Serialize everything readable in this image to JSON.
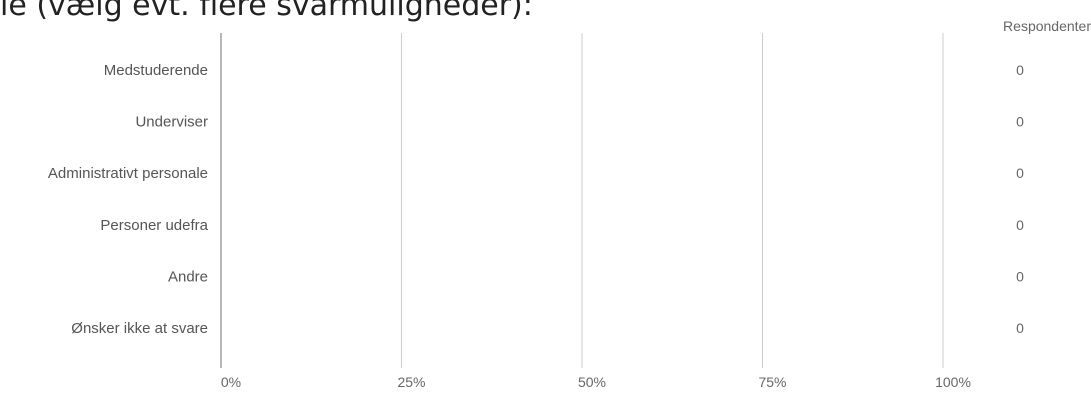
{
  "title": "le (vælg evt. flere svarmuligheder):",
  "chart_data": {
    "type": "bar",
    "orientation": "horizontal",
    "categories": [
      "Medstuderende",
      "Underviser",
      "Administrativt personale",
      "Personer udefra",
      "Andre",
      "Ønsker ikke at svare"
    ],
    "values": [
      0,
      0,
      0,
      0,
      0,
      0
    ],
    "value_unit": "%",
    "counts_header": "Respondenter",
    "counts": [
      "0",
      "0",
      "0",
      "0",
      "0",
      "0"
    ],
    "x_ticks": [
      "0%",
      "25%",
      "50%",
      "75%",
      "100%"
    ],
    "xlim": [
      0,
      100
    ],
    "grid": true,
    "bar_color": "#4a7fc1"
  }
}
